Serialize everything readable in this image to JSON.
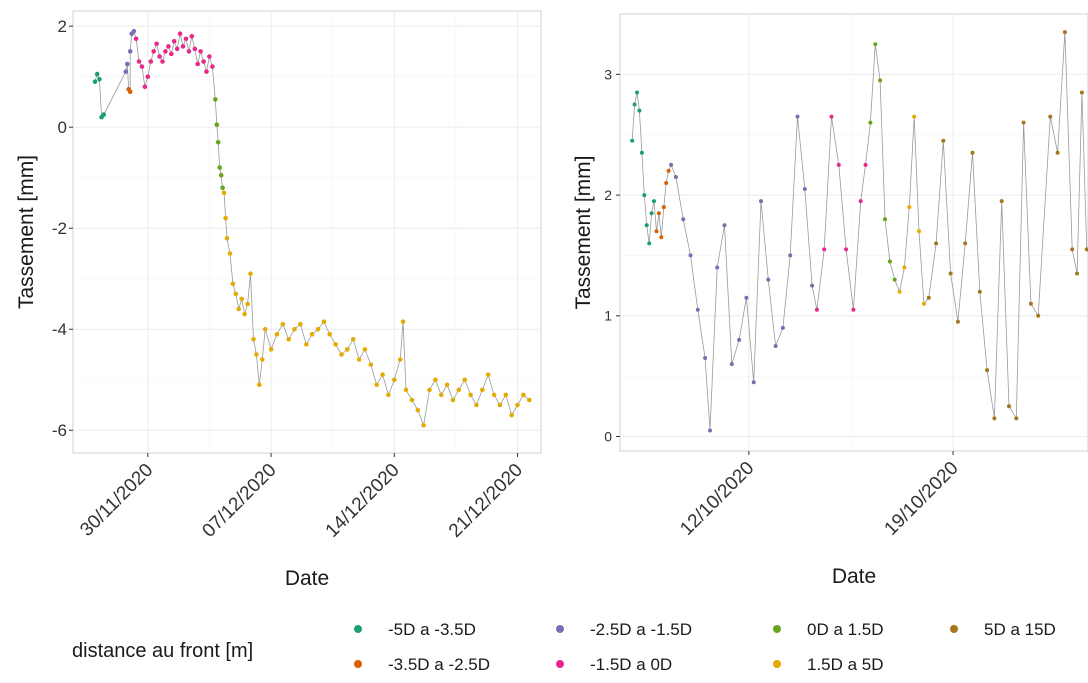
{
  "legend": {
    "title": "distance au front [m]",
    "position": "bottom",
    "entries": [
      {
        "label": "-5D a -3.5D",
        "color": "#1b9e77"
      },
      {
        "label": "-3.5D a -2.5D",
        "color": "#d95f02"
      },
      {
        "label": "-2.5D a -1.5D",
        "color": "#7570b3"
      },
      {
        "label": "-1.5D a 0D",
        "color": "#e7298a"
      },
      {
        "label": "0D a 1.5D",
        "color": "#66a61e"
      },
      {
        "label": "1.5D a 5D",
        "color": "#e6ab02"
      },
      {
        "label": "5D a 15D",
        "color": "#a6761d"
      }
    ]
  },
  "chart_data": [
    {
      "type": "scatter",
      "connected": true,
      "xlabel": "Date",
      "ylabel": "Tassement [mm]",
      "x_type": "date",
      "xlim": [
        "2020-11-25T18:00",
        "2020-12-22T08:00"
      ],
      "ylim": [
        -6.45,
        2.3
      ],
      "xticks": [
        "2020-11-30",
        "2020-12-07",
        "2020-12-14",
        "2020-12-21"
      ],
      "xtick_labels": [
        "30/11/2020",
        "07/12/2020",
        "14/12/2020",
        "21/12/2020"
      ],
      "yticks": [
        -6,
        -4,
        -2,
        0,
        2
      ],
      "grid": true,
      "series": [
        {
          "name": "-5D a -3.5D",
          "color": "#1b9e77",
          "points": [
            [
              "2020-11-27T00:00",
              0.9
            ],
            [
              "2020-11-27T03:00",
              1.05
            ],
            [
              "2020-11-27T06:00",
              0.95
            ],
            [
              "2020-11-27T09:00",
              0.2
            ],
            [
              "2020-11-27T12:00",
              0.25
            ]
          ]
        },
        {
          "name": "-3.5D a -2.5D",
          "color": "#d95f02",
          "points": [
            [
              "2020-11-28T22:00",
              0.75
            ],
            [
              "2020-11-29T00:00",
              0.7
            ]
          ]
        },
        {
          "name": "-2.5D a -1.5D",
          "color": "#7570b3",
          "points": [
            [
              "2020-11-28T18:00",
              1.1
            ],
            [
              "2020-11-28T20:00",
              1.25
            ],
            [
              "2020-11-29T00:00",
              1.5
            ],
            [
              "2020-11-29T02:00",
              1.85
            ],
            [
              "2020-11-29T05:00",
              1.9
            ]
          ]
        },
        {
          "name": "-1.5D a 0D",
          "color": "#e7298a",
          "points": [
            [
              "2020-11-29T08:00",
              1.75
            ],
            [
              "2020-11-29T12:00",
              1.3
            ],
            [
              "2020-11-29T16:00",
              1.2
            ],
            [
              "2020-11-29T20:00",
              0.8
            ],
            [
              "2020-11-30T00:00",
              1.0
            ],
            [
              "2020-11-30T04:00",
              1.3
            ],
            [
              "2020-11-30T08:00",
              1.5
            ],
            [
              "2020-11-30T12:00",
              1.65
            ],
            [
              "2020-11-30T16:00",
              1.4
            ],
            [
              "2020-11-30T20:00",
              1.3
            ],
            [
              "2020-12-01T00:00",
              1.5
            ],
            [
              "2020-12-01T04:00",
              1.6
            ],
            [
              "2020-12-01T08:00",
              1.45
            ],
            [
              "2020-12-01T12:00",
              1.7
            ],
            [
              "2020-12-01T16:00",
              1.55
            ],
            [
              "2020-12-01T20:00",
              1.85
            ],
            [
              "2020-12-02T00:00",
              1.6
            ],
            [
              "2020-12-02T04:00",
              1.75
            ],
            [
              "2020-12-02T08:00",
              1.5
            ],
            [
              "2020-12-02T12:00",
              1.8
            ],
            [
              "2020-12-02T16:00",
              1.55
            ],
            [
              "2020-12-02T20:00",
              1.25
            ],
            [
              "2020-12-03T00:00",
              1.5
            ],
            [
              "2020-12-03T04:00",
              1.3
            ],
            [
              "2020-12-03T08:00",
              1.1
            ],
            [
              "2020-12-03T12:00",
              1.4
            ],
            [
              "2020-12-03T16:00",
              1.2
            ]
          ]
        },
        {
          "name": "0D a 1.5D",
          "color": "#66a61e",
          "points": [
            [
              "2020-12-03T20:00",
              0.55
            ],
            [
              "2020-12-03T22:00",
              0.05
            ],
            [
              "2020-12-04T00:00",
              -0.3
            ],
            [
              "2020-12-04T02:00",
              -0.8
            ],
            [
              "2020-12-04T04:00",
              -0.95
            ],
            [
              "2020-12-04T06:00",
              -1.2
            ]
          ]
        },
        {
          "name": "1.5D a 5D",
          "color": "#e6ab02",
          "points": [
            [
              "2020-12-04T08:00",
              -1.3
            ],
            [
              "2020-12-04T10:00",
              -1.8
            ],
            [
              "2020-12-04T12:00",
              -2.2
            ],
            [
              "2020-12-04T16:00",
              -2.5
            ],
            [
              "2020-12-04T20:00",
              -3.1
            ],
            [
              "2020-12-05T00:00",
              -3.3
            ],
            [
              "2020-12-05T04:00",
              -3.6
            ],
            [
              "2020-12-05T08:00",
              -3.4
            ],
            [
              "2020-12-05T12:00",
              -3.7
            ],
            [
              "2020-12-05T16:00",
              -3.5
            ],
            [
              "2020-12-05T20:00",
              -2.9
            ],
            [
              "2020-12-06T00:00",
              -4.2
            ],
            [
              "2020-12-06T04:00",
              -4.5
            ],
            [
              "2020-12-06T08:00",
              -5.1
            ],
            [
              "2020-12-06T12:00",
              -4.6
            ],
            [
              "2020-12-06T16:00",
              -4.0
            ],
            [
              "2020-12-07T00:00",
              -4.4
            ],
            [
              "2020-12-07T08:00",
              -4.1
            ],
            [
              "2020-12-07T16:00",
              -3.9
            ],
            [
              "2020-12-08T00:00",
              -4.2
            ],
            [
              "2020-12-08T08:00",
              -4.0
            ],
            [
              "2020-12-08T16:00",
              -3.9
            ],
            [
              "2020-12-09T00:00",
              -4.3
            ],
            [
              "2020-12-09T08:00",
              -4.1
            ],
            [
              "2020-12-09T16:00",
              -4.0
            ],
            [
              "2020-12-10T00:00",
              -3.85
            ],
            [
              "2020-12-10T08:00",
              -4.1
            ],
            [
              "2020-12-10T16:00",
              -4.3
            ],
            [
              "2020-12-11T00:00",
              -4.5
            ],
            [
              "2020-12-11T08:00",
              -4.4
            ],
            [
              "2020-12-11T16:00",
              -4.2
            ],
            [
              "2020-12-12T00:00",
              -4.6
            ],
            [
              "2020-12-12T08:00",
              -4.4
            ],
            [
              "2020-12-12T16:00",
              -4.7
            ],
            [
              "2020-12-13T00:00",
              -5.1
            ],
            [
              "2020-12-13T08:00",
              -4.9
            ],
            [
              "2020-12-13T16:00",
              -5.3
            ],
            [
              "2020-12-14T00:00",
              -5.0
            ],
            [
              "2020-12-14T08:00",
              -4.6
            ],
            [
              "2020-12-14T12:00",
              -3.85
            ],
            [
              "2020-12-14T16:00",
              -5.2
            ],
            [
              "2020-12-15T00:00",
              -5.4
            ],
            [
              "2020-12-15T08:00",
              -5.6
            ],
            [
              "2020-12-15T16:00",
              -5.9
            ],
            [
              "2020-12-16T00:00",
              -5.2
            ],
            [
              "2020-12-16T08:00",
              -5.0
            ],
            [
              "2020-12-16T16:00",
              -5.3
            ],
            [
              "2020-12-17T00:00",
              -5.1
            ],
            [
              "2020-12-17T08:00",
              -5.4
            ],
            [
              "2020-12-17T16:00",
              -5.2
            ],
            [
              "2020-12-18T00:00",
              -5.0
            ],
            [
              "2020-12-18T08:00",
              -5.3
            ],
            [
              "2020-12-18T16:00",
              -5.5
            ],
            [
              "2020-12-19T00:00",
              -5.2
            ],
            [
              "2020-12-19T08:00",
              -4.9
            ],
            [
              "2020-12-19T16:00",
              -5.3
            ],
            [
              "2020-12-20T00:00",
              -5.5
            ],
            [
              "2020-12-20T08:00",
              -5.3
            ],
            [
              "2020-12-20T16:00",
              -5.7
            ],
            [
              "2020-12-21T00:00",
              -5.5
            ],
            [
              "2020-12-21T08:00",
              -5.3
            ],
            [
              "2020-12-21T16:00",
              -5.4
            ]
          ]
        }
      ]
    },
    {
      "type": "scatter",
      "connected": true,
      "xlabel": "Date",
      "ylabel": "Tassement [mm]",
      "x_type": "date",
      "xlim": [
        "2020-10-07T14:00",
        "2020-10-23T15:00"
      ],
      "ylim": [
        -0.12,
        3.5
      ],
      "xticks": [
        "2020-10-12",
        "2020-10-19"
      ],
      "xtick_labels": [
        "12/10/2020",
        "19/10/2020"
      ],
      "yticks": [
        0,
        1,
        2,
        3
      ],
      "grid": true,
      "series": [
        {
          "name": "-5D a -3.5D",
          "color": "#1b9e77",
          "points": [
            [
              "2020-10-08T00:00",
              2.45
            ],
            [
              "2020-10-08T02:00",
              2.75
            ],
            [
              "2020-10-08T04:00",
              2.85
            ],
            [
              "2020-10-08T06:00",
              2.7
            ],
            [
              "2020-10-08T08:00",
              2.35
            ],
            [
              "2020-10-08T10:00",
              2.0
            ],
            [
              "2020-10-08T12:00",
              1.75
            ],
            [
              "2020-10-08T14:00",
              1.6
            ],
            [
              "2020-10-08T16:00",
              1.85
            ],
            [
              "2020-10-08T18:00",
              1.95
            ]
          ]
        },
        {
          "name": "-3.5D a -2.5D",
          "color": "#d95f02",
          "points": [
            [
              "2020-10-08T20:00",
              1.7
            ],
            [
              "2020-10-08T22:00",
              1.85
            ],
            [
              "2020-10-09T00:00",
              1.65
            ],
            [
              "2020-10-09T02:00",
              1.9
            ],
            [
              "2020-10-09T04:00",
              2.1
            ],
            [
              "2020-10-09T06:00",
              2.2
            ]
          ]
        },
        {
          "name": "-2.5D a -1.5D",
          "color": "#7570b3",
          "points": [
            [
              "2020-10-09T08:00",
              2.25
            ],
            [
              "2020-10-09T12:00",
              2.15
            ],
            [
              "2020-10-09T18:00",
              1.8
            ],
            [
              "2020-10-10T00:00",
              1.5
            ],
            [
              "2020-10-10T06:00",
              1.05
            ],
            [
              "2020-10-10T12:00",
              0.65
            ],
            [
              "2020-10-10T16:00",
              0.05
            ],
            [
              "2020-10-10T22:00",
              1.4
            ],
            [
              "2020-10-11T04:00",
              1.75
            ],
            [
              "2020-10-11T10:00",
              0.6
            ],
            [
              "2020-10-11T16:00",
              0.8
            ],
            [
              "2020-10-11T22:00",
              1.15
            ],
            [
              "2020-10-12T04:00",
              0.45
            ],
            [
              "2020-10-12T10:00",
              1.95
            ],
            [
              "2020-10-12T16:00",
              1.3
            ],
            [
              "2020-10-12T22:00",
              0.75
            ],
            [
              "2020-10-13T04:00",
              0.9
            ],
            [
              "2020-10-13T10:00",
              1.5
            ],
            [
              "2020-10-13T16:00",
              2.65
            ],
            [
              "2020-10-13T22:00",
              2.05
            ],
            [
              "2020-10-14T04:00",
              1.25
            ]
          ]
        },
        {
          "name": "-1.5D a 0D",
          "color": "#e7298a",
          "points": [
            [
              "2020-10-14T08:00",
              1.05
            ],
            [
              "2020-10-14T14:00",
              1.55
            ],
            [
              "2020-10-14T20:00",
              2.65
            ],
            [
              "2020-10-15T02:00",
              2.25
            ],
            [
              "2020-10-15T08:00",
              1.55
            ],
            [
              "2020-10-15T14:00",
              1.05
            ],
            [
              "2020-10-15T20:00",
              1.95
            ],
            [
              "2020-10-16T00:00",
              2.25
            ]
          ]
        },
        {
          "name": "0D a 1.5D",
          "color": "#66a61e",
          "points": [
            [
              "2020-10-16T04:00",
              2.6
            ],
            [
              "2020-10-16T08:00",
              3.25
            ],
            [
              "2020-10-16T12:00",
              2.95
            ],
            [
              "2020-10-16T16:00",
              1.8
            ],
            [
              "2020-10-16T20:00",
              1.45
            ],
            [
              "2020-10-17T00:00",
              1.3
            ]
          ]
        },
        {
          "name": "1.5D a 5D",
          "color": "#e6ab02",
          "points": [
            [
              "2020-10-17T04:00",
              1.2
            ],
            [
              "2020-10-17T08:00",
              1.4
            ],
            [
              "2020-10-17T12:00",
              1.9
            ],
            [
              "2020-10-17T16:00",
              2.65
            ],
            [
              "2020-10-17T20:00",
              1.7
            ],
            [
              "2020-10-18T00:00",
              1.1
            ]
          ]
        },
        {
          "name": "5D a 15D",
          "color": "#a6761d",
          "points": [
            [
              "2020-10-18T04:00",
              1.15
            ],
            [
              "2020-10-18T10:00",
              1.6
            ],
            [
              "2020-10-18T16:00",
              2.45
            ],
            [
              "2020-10-18T22:00",
              1.35
            ],
            [
              "2020-10-19T04:00",
              0.95
            ],
            [
              "2020-10-19T10:00",
              1.6
            ],
            [
              "2020-10-19T16:00",
              2.35
            ],
            [
              "2020-10-19T22:00",
              1.2
            ],
            [
              "2020-10-20T04:00",
              0.55
            ],
            [
              "2020-10-20T10:00",
              0.15
            ],
            [
              "2020-10-20T16:00",
              1.95
            ],
            [
              "2020-10-20T22:00",
              0.25
            ],
            [
              "2020-10-21T04:00",
              0.15
            ],
            [
              "2020-10-21T10:00",
              2.6
            ],
            [
              "2020-10-21T16:00",
              1.1
            ],
            [
              "2020-10-21T22:00",
              1.0
            ],
            [
              "2020-10-22T08:00",
              2.65
            ],
            [
              "2020-10-22T14:00",
              2.35
            ],
            [
              "2020-10-22T20:00",
              3.35
            ],
            [
              "2020-10-23T02:00",
              1.55
            ],
            [
              "2020-10-23T06:00",
              1.35
            ],
            [
              "2020-10-23T10:00",
              2.85
            ],
            [
              "2020-10-23T14:00",
              1.55
            ]
          ]
        }
      ]
    }
  ]
}
